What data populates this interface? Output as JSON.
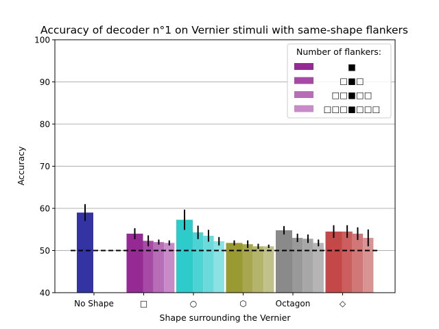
{
  "chart_data": {
    "type": "bar",
    "title": "Accuracy of decoder n°1 on Vernier stimuli with same-shape flankers",
    "xlabel": "Shape surrounding the Vernier",
    "ylabel": "Accuracy",
    "ylim": [
      40,
      100
    ],
    "yticks": [
      "40",
      "50",
      "60",
      "70",
      "80",
      "90",
      "100"
    ],
    "grid": "horizontal",
    "chance_level": 50,
    "legend": {
      "title": "Number of flankers:",
      "placement": "top-right",
      "entries": [
        "■",
        "□■□",
        "□□■□□",
        "□□□■□□□"
      ],
      "colors": [
        "#952a95",
        "#a64aa6",
        "#b76eb7",
        "#c78cc7"
      ]
    },
    "categories": [
      "No Shape",
      "□",
      "○",
      "⬡",
      "Octagon",
      "◇"
    ],
    "groups": [
      {
        "category": "No Shape",
        "values": [
          59.0
        ],
        "errors": [
          2.0
        ],
        "colors": [
          "#3333a4"
        ]
      },
      {
        "category": "□",
        "values": [
          54.0,
          52.3,
          52.0,
          51.8
        ],
        "errors": [
          1.3,
          1.3,
          0.6,
          0.6
        ],
        "colors": [
          "#952a95",
          "#a64aa6",
          "#b76eb7",
          "#c78cc7"
        ]
      },
      {
        "category": "○",
        "values": [
          57.3,
          54.3,
          53.5,
          52.2
        ],
        "errors": [
          2.4,
          1.6,
          1.4,
          1.0
        ],
        "colors": [
          "#2ecbcb",
          "#4dd3d3",
          "#6bdada",
          "#8ae2e2"
        ]
      },
      {
        "category": "⬡",
        "values": [
          51.8,
          51.5,
          51.0,
          51.0
        ],
        "errors": [
          0.6,
          0.9,
          0.6,
          0.4
        ],
        "colors": [
          "#9a9a32",
          "#a7a74f",
          "#b4b46c",
          "#c1c18a"
        ]
      },
      {
        "category": "Octagon",
        "values": [
          54.8,
          53.0,
          52.8,
          51.8
        ],
        "errors": [
          1.0,
          1.0,
          1.0,
          0.8
        ],
        "colors": [
          "#8a8a8a",
          "#999999",
          "#a7a7a7",
          "#b5b5b5"
        ]
      },
      {
        "category": "◇",
        "values": [
          54.5,
          54.5,
          54.0,
          53.0
        ],
        "errors": [
          1.5,
          1.5,
          1.5,
          2.0
        ],
        "colors": [
          "#c44848",
          "#cb5f5f",
          "#d27777",
          "#d99393"
        ]
      }
    ]
  }
}
